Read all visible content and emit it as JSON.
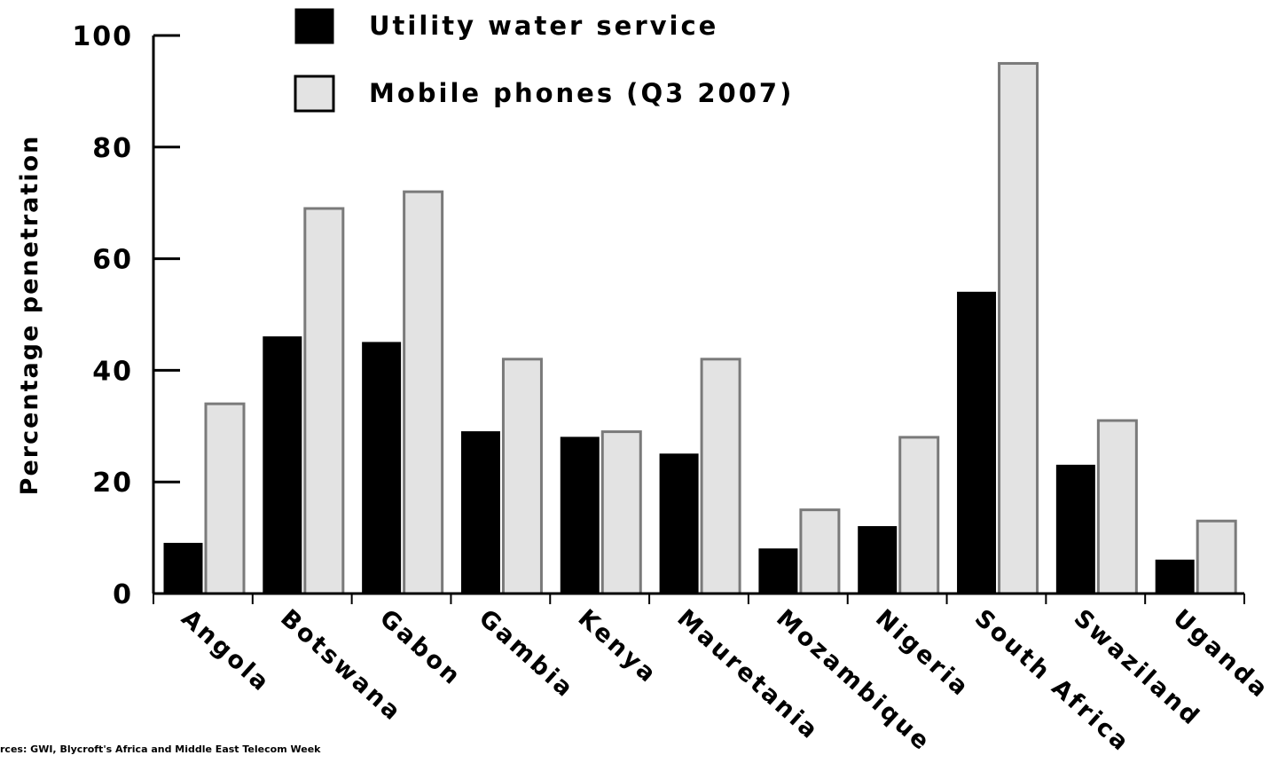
{
  "chart_data": {
    "type": "bar",
    "categories": [
      "Angola",
      "Botswana",
      "Gabon",
      "Gambia",
      "Kenya",
      "Mauretania",
      "Mozambique",
      "Nigeria",
      "South Africa",
      "Swaziland",
      "Uganda"
    ],
    "series": [
      {
        "name": "Utility water service",
        "color": "#000000",
        "values": [
          9,
          46,
          45,
          29,
          28,
          25,
          8,
          12,
          54,
          23,
          6
        ]
      },
      {
        "name": "Mobile phones (Q3 2007)",
        "color": "#e3e3e3",
        "values": [
          34,
          69,
          72,
          42,
          29,
          42,
          15,
          28,
          95,
          31,
          13
        ]
      }
    ],
    "ylabel": "Percentage penetration",
    "xlabel": "",
    "ylim": [
      0,
      100
    ],
    "yticks": [
      0,
      20,
      40,
      60,
      80,
      100
    ],
    "legend_position": "top",
    "grid": false
  },
  "source_note": "rces: GWI, Blycroft's Africa and Middle East Telecom Week"
}
